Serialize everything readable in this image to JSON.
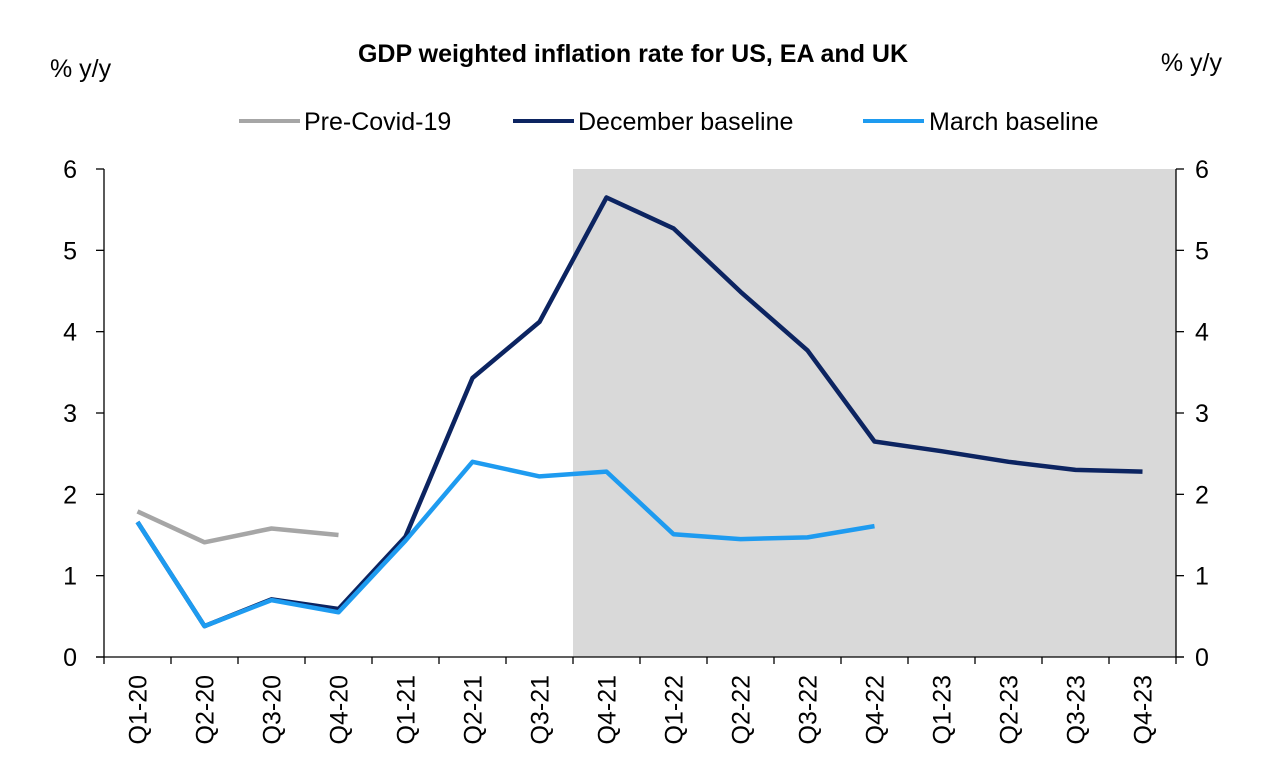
{
  "chart_data": {
    "type": "line",
    "title": "GDP weighted inflation rate for US, EA and UK",
    "ylabel_left": "% y/y",
    "ylabel_right": "% y/y",
    "xlabel": "",
    "categories": [
      "Q1-20",
      "Q2-20",
      "Q3-20",
      "Q4-20",
      "Q1-21",
      "Q2-21",
      "Q3-21",
      "Q4-21",
      "Q1-22",
      "Q2-22",
      "Q3-22",
      "Q4-22",
      "Q1-23",
      "Q2-23",
      "Q3-23",
      "Q4-23"
    ],
    "ylim": [
      0,
      6
    ],
    "yticks": [
      0,
      1,
      2,
      3,
      4,
      5,
      6
    ],
    "grid": false,
    "legend_position": "top",
    "shaded_region": {
      "from_category": "Q4-21",
      "to_category": "Q4-23",
      "color": "#d9d9d9"
    },
    "series": [
      {
        "name": "Pre-Covid-19",
        "color": "#a6a6a6",
        "values": [
          1.79,
          1.41,
          1.58,
          1.5,
          null,
          null,
          null,
          null,
          null,
          null,
          null,
          null,
          null,
          null,
          null,
          null
        ]
      },
      {
        "name": "December baseline",
        "color": "#0c2461",
        "values": [
          1.66,
          0.38,
          0.71,
          0.59,
          1.48,
          3.43,
          4.12,
          5.65,
          5.27,
          4.49,
          3.77,
          2.65,
          2.53,
          2.4,
          2.3,
          2.28
        ]
      },
      {
        "name": "March baseline",
        "color": "#1e9bf0",
        "values": [
          1.66,
          0.38,
          0.7,
          0.55,
          1.43,
          2.4,
          2.22,
          2.28,
          1.51,
          1.45,
          1.47,
          1.61,
          null,
          null,
          null,
          null
        ]
      }
    ]
  }
}
